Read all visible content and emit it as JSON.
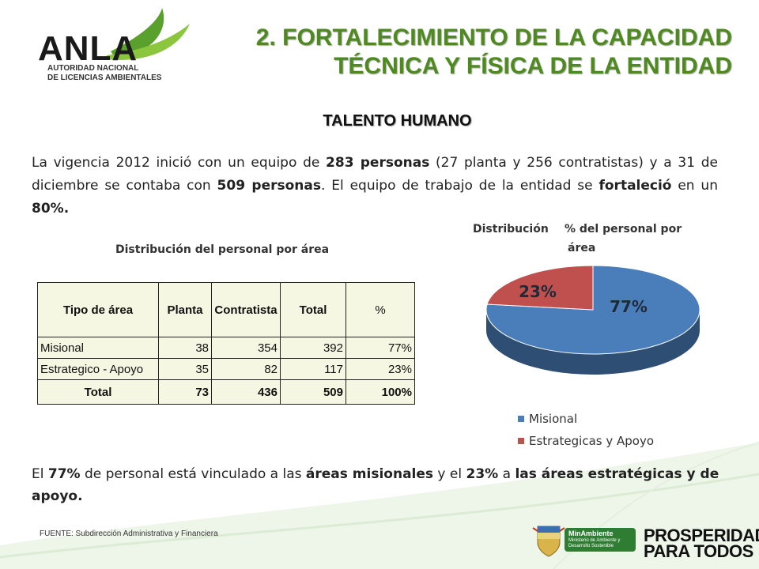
{
  "header": {
    "logo_text": "ANLA",
    "logo_sub_1": "AUTORIDAD NACIONAL",
    "logo_sub_2": "DE LICENCIAS AMBIENTALES",
    "title_1": "2. FORTALECIMIENTO DE LA CAPACIDAD",
    "title_2": "TÉCNICA Y FÍSICA DE LA ENTIDAD"
  },
  "section_title": "TALENTO HUMANO",
  "intro": {
    "t1": "La vigencia 2012 inició con un equipo de ",
    "b1": "283 personas",
    "t2": " (27 planta y 256 contratistas) y a 31 de diciembre se contaba con ",
    "b2": "509 personas",
    "t3": ". El equipo de trabajo de la entidad se ",
    "b3": "fortaleció",
    "t4": " en un ",
    "b4": "80%."
  },
  "table": {
    "title": "Distribución  del personal por área",
    "headers": [
      "Tipo de área",
      "Planta",
      "Contratista",
      "Total",
      "%"
    ],
    "rows": [
      [
        "Misional",
        "38",
        "354",
        "392",
        "77%"
      ],
      [
        "Estrategico - Apoyo",
        "35",
        "82",
        "117",
        "23%"
      ]
    ],
    "total": [
      "Total",
      "73",
      "436",
      "509",
      "100%"
    ]
  },
  "chart_data": {
    "type": "pie",
    "title_1": "Distribución",
    "title_2": "% del personal por",
    "title_3": "área",
    "categories": [
      "Misional",
      "Estrategicas y Apoyo"
    ],
    "values": [
      77,
      23
    ],
    "labels": [
      "77%",
      "23%"
    ],
    "colors": [
      "#4a7ebb",
      "#c0504d"
    ],
    "legend_position": "bottom"
  },
  "closing": {
    "t1": "El ",
    "b1": "77%",
    "t2": " de personal está vinculado a las ",
    "b2": "áreas misionales",
    "t3": " y el ",
    "b3": "23%",
    "t4": " a ",
    "b4": "las áreas estratégicas y de apoyo."
  },
  "source": "FUENTE:  Subdirección Administrativa  y Financiera",
  "footer": {
    "minambiente": "MinAmbiente",
    "minambiente_sub": "Ministerio de Ambiente y Desarrollo Sostenible",
    "prosperidad_1": "PROSPERIDAD",
    "prosperidad_2": "PARA TODOS"
  }
}
